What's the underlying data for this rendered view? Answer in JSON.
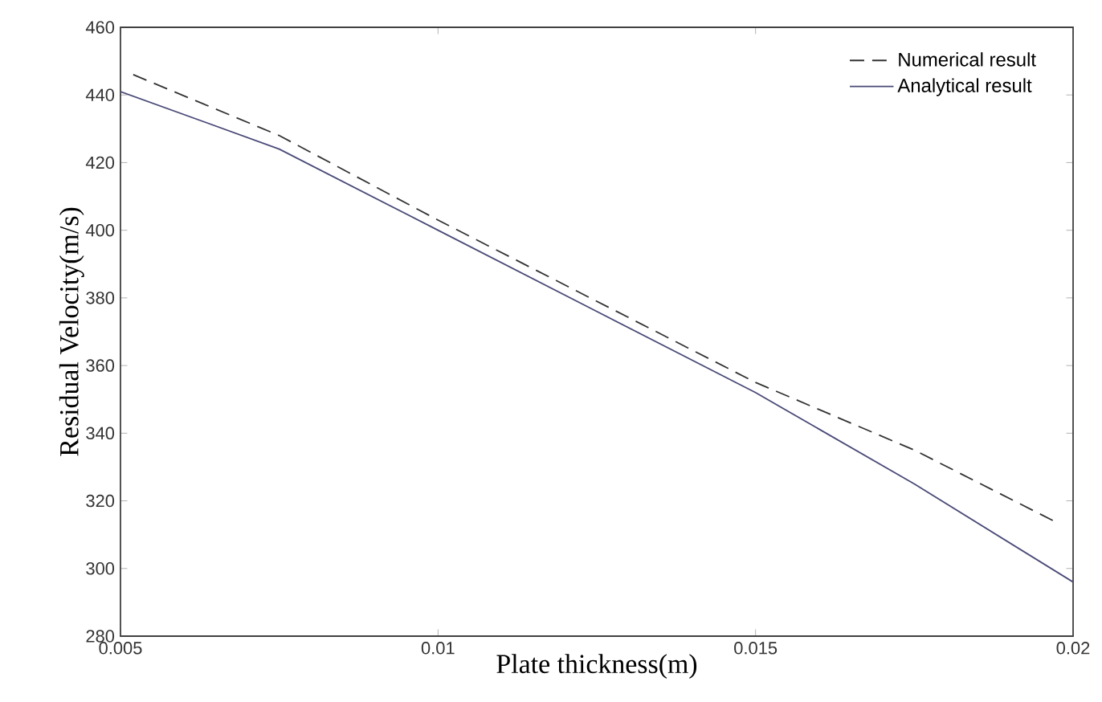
{
  "chart_data": {
    "type": "line",
    "xlabel": "Plate thickness(m)",
    "ylabel": "Residual Velocity(m/s)",
    "x": [
      0.0052,
      0.0075,
      0.01,
      0.0125,
      0.015,
      0.0175,
      0.0197
    ],
    "series": [
      {
        "name": "Numerical result",
        "color": "#333333",
        "line_style": "dashed",
        "values": [
          446,
          428,
          403,
          379,
          355,
          335,
          314
        ]
      },
      {
        "name": "Analytical result",
        "color": "#4a4a78",
        "line_style": "solid",
        "x": [
          0.005,
          0.0075,
          0.01,
          0.0125,
          0.015,
          0.0175,
          0.02
        ],
        "values": [
          441,
          424,
          400,
          376,
          352,
          325,
          296
        ]
      }
    ],
    "xlim": [
      0.005,
      0.02
    ],
    "xticks": [
      0.005,
      0.01,
      0.015,
      0.02
    ],
    "ylim": [
      280,
      460
    ],
    "yticks": [
      280,
      300,
      320,
      340,
      360,
      380,
      400,
      420,
      440,
      460
    ],
    "grid": false,
    "legend": "top right"
  }
}
